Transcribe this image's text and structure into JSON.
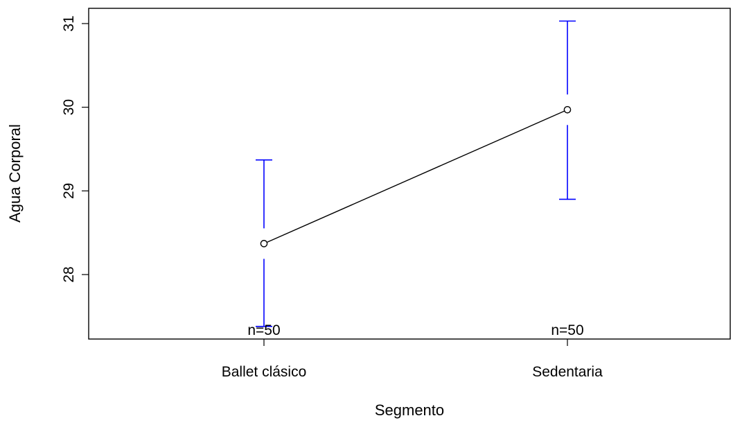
{
  "chart_data": {
    "type": "line",
    "title": "",
    "xlabel": "Segmento",
    "ylabel": "Agua Corporal",
    "categories": [
      "Ballet clásico",
      "Sedentaria"
    ],
    "means": [
      28.37,
      29.97
    ],
    "error_upper": [
      29.37,
      31.03
    ],
    "error_lower": [
      27.38,
      28.9
    ],
    "n_labels": [
      "n=50",
      "n=50"
    ],
    "y_ticks": [
      28,
      29,
      30,
      31
    ],
    "y_tick_labels": [
      "28",
      "29",
      "30",
      "31"
    ],
    "ylim": [
      27.25,
      31.2
    ],
    "grid": false,
    "colors": {
      "line": "#000000",
      "error_bars": "#0000ff",
      "axes": "#000000"
    }
  }
}
